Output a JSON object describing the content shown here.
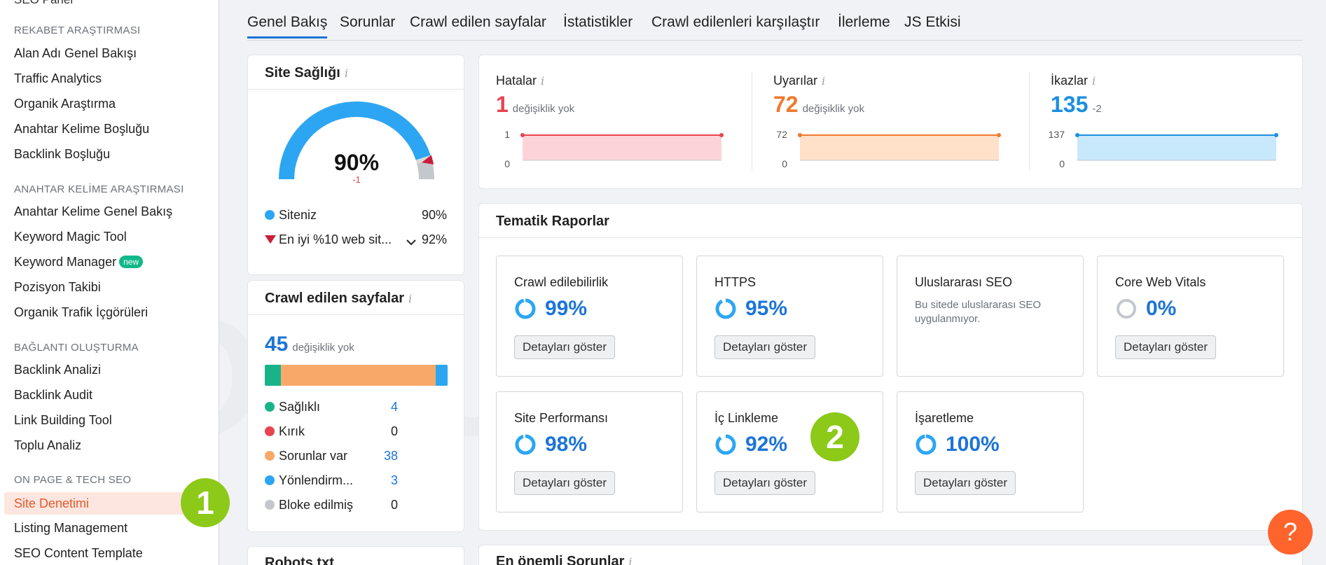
{
  "sidebar": {
    "cut_item": "SEO Panel",
    "sections": [
      {
        "title": "REKABET ARAŞTIRMASI",
        "items": [
          "Alan Adı Genel Bakışı",
          "Traffic Analytics",
          "Organik Araştırma",
          "Anahtar Kelime Boşluğu",
          "Backlink Boşluğu"
        ]
      },
      {
        "title": "ANAHTAR KELİME ARAŞTIRMASI",
        "items": [
          "Anahtar Kelime Genel Bakış",
          "Keyword Magic Tool",
          "Keyword Manager",
          "Pozisyon Takibi",
          "Organik Trafik İçgörüleri"
        ],
        "badge": "new"
      },
      {
        "title": "BAĞLANTI OLUŞTURMA",
        "items": [
          "Backlink Analizi",
          "Backlink Audit",
          "Link Building Tool",
          "Toplu Analiz"
        ]
      },
      {
        "title": "ON PAGE & TECH SEO",
        "items": [
          "Site Denetimi",
          "Listing Management",
          "SEO Content Template"
        ]
      }
    ]
  },
  "markers": {
    "one": "1",
    "two": "2"
  },
  "tabs": [
    "Genel Bakış",
    "Sorunlar",
    "Crawl edilen sayfalar",
    "İstatistikler",
    "Crawl edilenleri karşılaştır",
    "İlerleme",
    "JS Etkisi"
  ],
  "site_health": {
    "title": "Site Sağlığı",
    "percent": "90%",
    "delta": "-1",
    "value": 90,
    "top10_value": 92,
    "rows": [
      {
        "label": "Siteniz",
        "value": "90%"
      },
      {
        "label": "En iyi %10 web sit...",
        "value": "92%"
      }
    ]
  },
  "crawled": {
    "title": "Crawl edilen sayfalar",
    "count": "45",
    "change": "değişiklik yok",
    "rows": [
      {
        "label": "Sağlıklı",
        "value": "4",
        "color": "#19b38a"
      },
      {
        "label": "Kırık",
        "value": "0",
        "color": "#e8434f"
      },
      {
        "label": "Sorunlar var",
        "value": "38",
        "color": "#f8a96a"
      },
      {
        "label": "Yönlendirm...",
        "value": "3",
        "color": "#2ca6f2"
      },
      {
        "label": "Bloke edilmiş",
        "value": "0",
        "color": "#c4c7cc"
      }
    ]
  },
  "robots": {
    "title": "Robots.txt"
  },
  "errors": [
    {
      "label": "Hatalar",
      "value": "1",
      "sub": "değişiklik yok",
      "ymax": "1",
      "ymin": "0",
      "color": "#e8434f",
      "fill": "#fcd4d8"
    },
    {
      "label": "Uyarılar",
      "value": "72",
      "sub": "değişiklik yok",
      "ymax": "72",
      "ymin": "0",
      "color": "#f07a2e",
      "fill": "#ffe0c8"
    },
    {
      "label": "İkazlar",
      "value": "135",
      "sub": "-2",
      "ymax": "137",
      "ymin": "0",
      "color": "#1c8fe0",
      "fill": "#c8e8fb"
    }
  ],
  "thematic": {
    "title": "Tematik Raporlar",
    "button_label": "Detayları göster",
    "cards": [
      {
        "title": "Crawl edilebilirlik",
        "pct": "99%",
        "value": 99,
        "has_button": true
      },
      {
        "title": "HTTPS",
        "pct": "95%",
        "value": 95,
        "has_button": true
      },
      {
        "title": "Uluslararası SEO",
        "note": "Bu sitede uluslararası SEO uygulanmıyor.",
        "has_button": false
      },
      {
        "title": "Core Web Vitals",
        "pct": "0%",
        "value": 0,
        "has_button": true
      },
      {
        "title": "Site Performansı",
        "pct": "98%",
        "value": 98,
        "has_button": true
      },
      {
        "title": "İç Linkleme",
        "pct": "92%",
        "value": 92,
        "has_button": true
      },
      {
        "title": "İşaretleme",
        "pct": "100%",
        "value": 100,
        "has_button": true
      }
    ]
  },
  "top_issues": {
    "title": "En önemli Sorunlar"
  },
  "help": {
    "label": "?"
  },
  "watermark": "ONURUZUN",
  "colors": {
    "accent": "#1c74d8",
    "active": "#e05a2b",
    "marker": "#8cc919",
    "help": "#ff642d"
  }
}
